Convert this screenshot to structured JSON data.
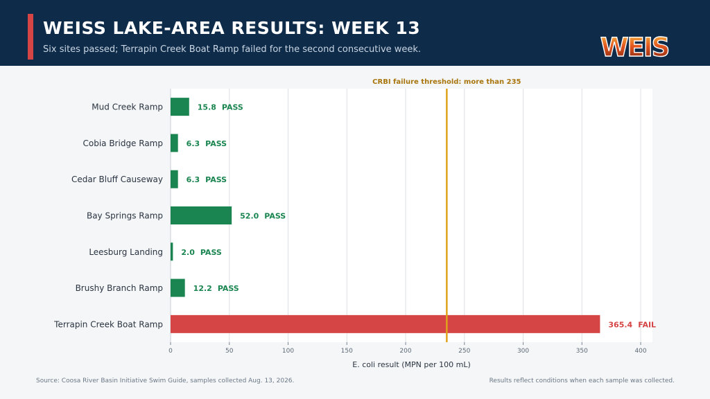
{
  "header": {
    "title": "WEISS LAKE-AREA RESULTS: WEEK 13",
    "subtitle": "Six sites passed; Terrapin Creek Boat Ramp failed for the second consecutive week.",
    "logo_text": "WEIS"
  },
  "footer": {
    "source": "Source: Coosa River Basin Initiative Swim Guide, samples collected Aug. 13, 2026.",
    "note": "Results reflect conditions when each sample was collected."
  },
  "colors": {
    "header_bg": "#0f2b4a",
    "accent": "#d64545",
    "pass": "#1a8550",
    "fail": "#d64545",
    "threshold": "#e0a21b",
    "threshold_label": "#a9760e"
  },
  "chart_data": {
    "type": "bar",
    "orientation": "horizontal",
    "categories": [
      "Mud Creek Ramp",
      "Cobia Bridge Ramp",
      "Cedar Bluff Causeway",
      "Bay Springs Ramp",
      "Leesburg Landing",
      "Brushy Branch Ramp",
      "Terrapin Creek Boat Ramp"
    ],
    "values": [
      15.8,
      6.3,
      6.3,
      52.0,
      2.0,
      12.2,
      365.4
    ],
    "value_labels": [
      "15.8",
      "6.3",
      "6.3",
      "52.0",
      "2.0",
      "12.2",
      "365.4"
    ],
    "status": [
      "PASS",
      "PASS",
      "PASS",
      "PASS",
      "PASS",
      "PASS",
      "FAIL"
    ],
    "xlabel": "E. coli result (MPN per 100 mL)",
    "xlim": [
      0,
      410
    ],
    "xticks": [
      0,
      50,
      100,
      150,
      200,
      250,
      300,
      350,
      400
    ],
    "grid": true,
    "threshold": {
      "value": 235,
      "label": "CRBI failure threshold: more than 235"
    }
  }
}
